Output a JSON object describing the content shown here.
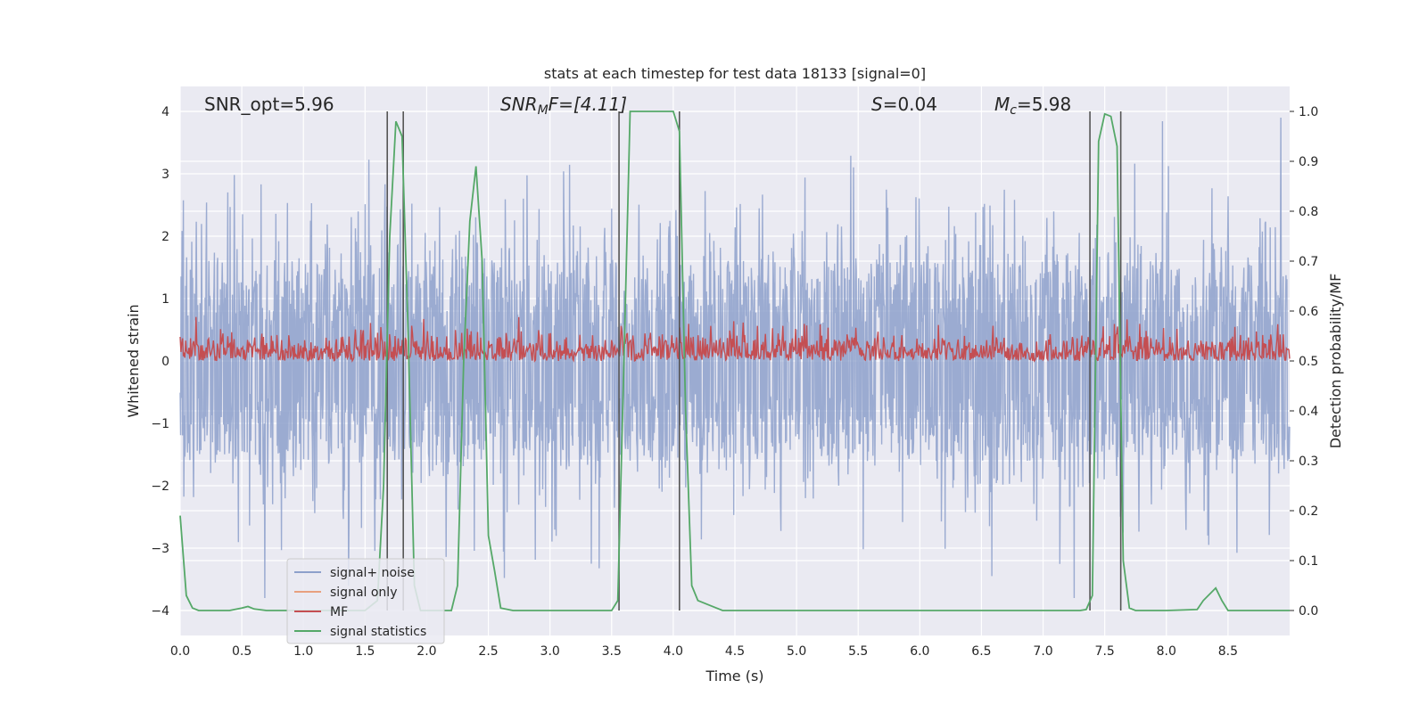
{
  "chart_data": {
    "type": "line",
    "title": "stats at each timestep for test data 18133 [signal=0]",
    "xlabel": "Time (s)",
    "ylabel": "Whitened strain",
    "ylabel_right": "Detection probability/MF",
    "xlim": [
      0.0,
      9.0
    ],
    "ylim": [
      -4.4,
      4.4
    ],
    "ylim_right": [
      -0.05,
      1.05
    ],
    "x_ticks": [
      "0.0",
      "0.5",
      "1.0",
      "1.5",
      "2.0",
      "2.5",
      "3.0",
      "3.5",
      "4.0",
      "4.5",
      "5.0",
      "5.5",
      "6.0",
      "6.5",
      "7.0",
      "7.5",
      "8.0",
      "8.5"
    ],
    "x_tick_values": [
      0.0,
      0.5,
      1.0,
      1.5,
      2.0,
      2.5,
      3.0,
      3.5,
      4.0,
      4.5,
      5.0,
      5.5,
      6.0,
      6.5,
      7.0,
      7.5,
      8.0,
      8.5
    ],
    "y_ticks": [
      "−4",
      "−3",
      "−2",
      "−1",
      "0",
      "1",
      "2",
      "3",
      "4"
    ],
    "y_tick_values": [
      -4,
      -3,
      -2,
      -1,
      0,
      1,
      2,
      3,
      4
    ],
    "y_ticks_right": [
      "0.0",
      "0.1",
      "0.2",
      "0.3",
      "0.4",
      "0.5",
      "0.6",
      "0.7",
      "0.8",
      "0.9",
      "1.0"
    ],
    "y_tick_values_right": [
      0.0,
      0.1,
      0.2,
      0.3,
      0.4,
      0.5,
      0.6,
      0.7,
      0.8,
      0.9,
      1.0
    ],
    "grid": true,
    "legend_position": "bottom-left",
    "annotations": {
      "snr_opt": "SNR_opt=5.96",
      "snr_mf_sym": "SNR",
      "snr_mf_sub": "M",
      "snr_mf_rest": "F=[4.11]",
      "s_sym": "S",
      "s_rest": "=0.04",
      "mc_sym": "M",
      "mc_sub": "c",
      "mc_rest": "=5.98"
    },
    "series": [
      {
        "name": "signal+ noise",
        "color": "#8da0cb",
        "axis": "left",
        "description_values": {
          "typical_envelope": [
            -2.0,
            2.0
          ],
          "extreme_range": [
            -3.8,
            3.9
          ]
        }
      },
      {
        "name": "signal only",
        "color": "#e8a07f",
        "axis": "left",
        "values": []
      },
      {
        "name": "MF",
        "color": "#c44e52",
        "axis": "right",
        "description_values": {
          "range": [
            0.5,
            0.6
          ]
        }
      },
      {
        "name": "signal statistics",
        "color": "#55a868",
        "axis": "right",
        "x": [
          0.0,
          0.05,
          0.1,
          0.15,
          0.2,
          0.3,
          0.4,
          0.5,
          0.55,
          0.6,
          0.7,
          0.8,
          0.9,
          1.0,
          1.2,
          1.4,
          1.5,
          1.6,
          1.65,
          1.7,
          1.75,
          1.8,
          1.85,
          1.9,
          1.95,
          2.0,
          2.1,
          2.2,
          2.25,
          2.3,
          2.35,
          2.4,
          2.45,
          2.5,
          2.55,
          2.6,
          2.7,
          2.8,
          3.0,
          3.2,
          3.4,
          3.5,
          3.55,
          3.6,
          3.65,
          3.7,
          3.8,
          3.9,
          4.0,
          4.05,
          4.1,
          4.15,
          4.2,
          4.3,
          4.4,
          4.5,
          5.0,
          5.5,
          6.0,
          6.5,
          7.0,
          7.3,
          7.35,
          7.4,
          7.45,
          7.5,
          7.55,
          7.6,
          7.65,
          7.7,
          7.75,
          7.8,
          8.0,
          8.25,
          8.3,
          8.4,
          8.45,
          8.5,
          8.6,
          9.0
        ],
        "values": [
          0.19,
          0.03,
          0.005,
          0.0,
          0.0,
          0.0,
          0.0,
          0.005,
          0.008,
          0.003,
          0.0,
          0.0,
          0.0,
          0.0,
          0.0,
          0.0,
          0.0,
          0.02,
          0.25,
          0.75,
          0.98,
          0.95,
          0.55,
          0.05,
          0.0,
          0.0,
          0.0,
          0.0,
          0.05,
          0.5,
          0.78,
          0.89,
          0.7,
          0.15,
          0.08,
          0.005,
          0.0,
          0.0,
          0.0,
          0.0,
          0.0,
          0.0,
          0.02,
          0.5,
          1.0,
          1.0,
          1.0,
          1.0,
          1.0,
          0.96,
          0.4,
          0.05,
          0.02,
          0.01,
          0.0,
          0.0,
          0.0,
          0.0,
          0.0,
          0.0,
          0.0,
          0.0,
          0.002,
          0.03,
          0.94,
          0.995,
          0.99,
          0.93,
          0.1,
          0.005,
          0.0,
          0.0,
          0.0,
          0.002,
          0.02,
          0.045,
          0.02,
          0.0,
          0.0,
          0.0
        ]
      }
    ],
    "vertical_markers": [
      1.68,
      1.81,
      3.56,
      4.05,
      7.38,
      7.63
    ]
  },
  "legend": {
    "items": [
      {
        "label": "signal+ noise",
        "color": "#8da0cb"
      },
      {
        "label": "signal only",
        "color": "#e8a07f"
      },
      {
        "label": "MF",
        "color": "#c44e52"
      },
      {
        "label": "signal statistics",
        "color": "#55a868"
      }
    ]
  }
}
